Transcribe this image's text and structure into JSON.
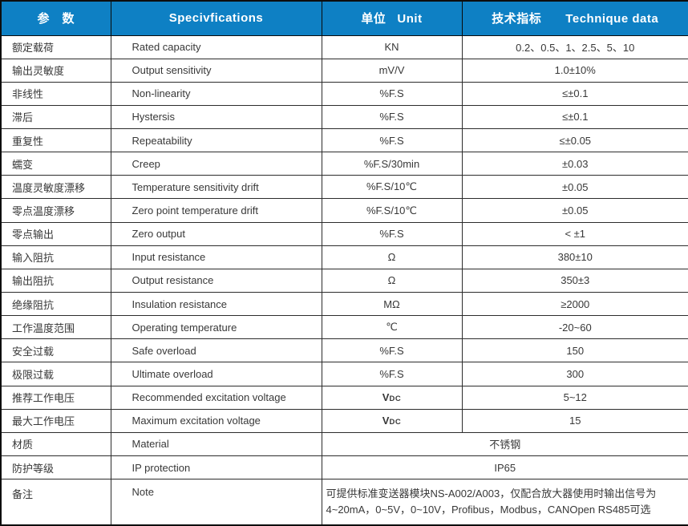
{
  "colors": {
    "header_bg": "#0e80c4",
    "header_text": "#ffffff",
    "body_text": "#383838",
    "border": "#2c2c2c"
  },
  "table": {
    "headers": {
      "param": "参　数",
      "spec": "Specivfications",
      "unit_cn": "单位",
      "unit_en": "Unit",
      "tech_cn": "技术指标",
      "tech_en": "Technique data"
    },
    "rows": [
      {
        "cn": "额定载荷",
        "en": "Rated capacity",
        "unit": "KN",
        "value": "0.2、0.5、1、2.5、5、10"
      },
      {
        "cn": "输出灵敏度",
        "en": "Output sensitivity",
        "unit": "mV/V",
        "value": "1.0±10%"
      },
      {
        "cn": "非线性",
        "en": "Non-linearity",
        "unit": "%F.S",
        "value": "≤±0.1"
      },
      {
        "cn": "滞后",
        "en": "Hystersis",
        "unit": "%F.S",
        "value": "≤±0.1"
      },
      {
        "cn": "重复性",
        "en": "Repeatability",
        "unit": "%F.S",
        "value": "≤±0.05"
      },
      {
        "cn": "蠕变",
        "en": "Creep",
        "unit": "%F.S/30min",
        "value": "±0.03"
      },
      {
        "cn": "温度灵敏度漂移",
        "en": "Temperature sensitivity drift",
        "unit": "%F.S/10℃",
        "value": "±0.05"
      },
      {
        "cn": "零点温度漂移",
        "en": "Zero point temperature drift",
        "unit": "%F.S/10℃",
        "value": "±0.05"
      },
      {
        "cn": "零点输出",
        "en": "Zero output",
        "unit": "%F.S",
        "value": "< ±1"
      },
      {
        "cn": "输入阻抗",
        "en": "Input resistance",
        "unit": "Ω",
        "value": "380±10"
      },
      {
        "cn": "输出阻抗",
        "en": "Output resistance",
        "unit": "Ω",
        "value": "350±3"
      },
      {
        "cn": "绝缘阻抗",
        "en": "Insulation resistance",
        "unit": "MΩ",
        "value": "≥2000"
      },
      {
        "cn": "工作温度范围",
        "en": "Operating temperature",
        "unit": "℃",
        "value": "-20~60"
      },
      {
        "cn": "安全过载",
        "en": "Safe overload",
        "unit": "%F.S",
        "value": "150"
      },
      {
        "cn": "极限过载",
        "en": "Ultimate overload",
        "unit": "%F.S",
        "value": "300"
      },
      {
        "cn": "推荐工作电压",
        "en": "Recommended excitation voltage",
        "unit": "V",
        "unit_sub": "DC",
        "value": "5~12"
      },
      {
        "cn": "最大工作电压",
        "en": "Maximum excitation voltage",
        "unit": "V",
        "unit_sub": "DC",
        "value": "15"
      },
      {
        "cn": "材质",
        "en": "Material",
        "merged": true,
        "value": "不锈钢"
      },
      {
        "cn": "防护等级",
        "en": "IP protection",
        "merged": true,
        "value": "IP65"
      },
      {
        "cn": "备注",
        "en": "Note",
        "merged": true,
        "note": true,
        "value_lines": [
          "可提供标准变送器模块NS-A002/A003，仅配合放大器使用时输出信号为",
          "4~20mA，0~5V，0~10V，Profibus，Modbus，CANOpen RS485可选"
        ]
      }
    ]
  }
}
